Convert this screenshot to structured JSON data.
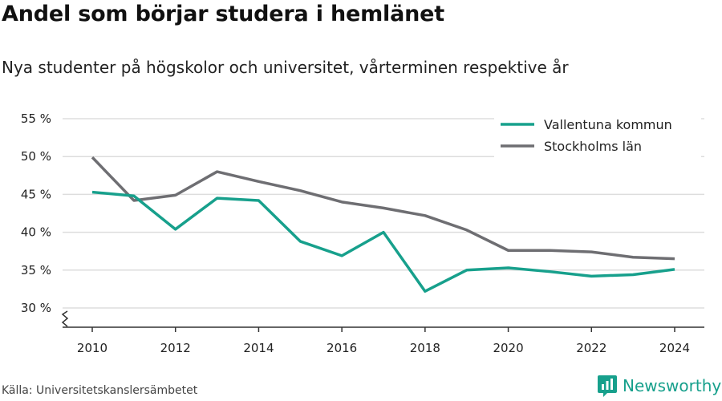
{
  "header": {
    "title": "Andel som börjar studera i hemlänet",
    "subtitle": "Nya studenter på högskolor och universitet, vårterminen respektive år"
  },
  "footer": {
    "source": "Källa: Universitetskanslersämbetet",
    "brand": "Newsworthy",
    "brand_icon": "bar-chart-logo-icon"
  },
  "colors": {
    "vallentuna": "#17a08c",
    "stockholm": "#6e6e72",
    "grid": "#dddddd",
    "axis": "#333333",
    "brand": "#17a08c"
  },
  "chart_data": {
    "type": "line",
    "x": [
      2010,
      2011,
      2012,
      2013,
      2014,
      2015,
      2016,
      2017,
      2018,
      2019,
      2020,
      2021,
      2022,
      2023,
      2024
    ],
    "series": [
      {
        "name": "Vallentuna kommun",
        "values": [
          45.3,
          44.8,
          40.4,
          44.5,
          44.2,
          38.8,
          36.9,
          40.0,
          32.2,
          35.0,
          35.3,
          34.8,
          34.2,
          34.4,
          35.1
        ]
      },
      {
        "name": "Stockholms län",
        "values": [
          49.9,
          44.2,
          44.9,
          48.0,
          46.7,
          45.5,
          44.0,
          43.2,
          42.2,
          40.3,
          37.6,
          37.6,
          37.4,
          36.7,
          36.5
        ]
      }
    ],
    "xticks": [
      "2010",
      "2012",
      "2014",
      "2016",
      "2018",
      "2020",
      "2022",
      "2024"
    ],
    "yticks": [
      "30 %",
      "35 %",
      "40 %",
      "45 %",
      "50 %",
      "55 %"
    ],
    "ylim": [
      30,
      55
    ],
    "xlim": [
      2010,
      2024
    ],
    "grid": "horizontal",
    "legend_position": "top-right",
    "axis_break": "y-axis"
  }
}
